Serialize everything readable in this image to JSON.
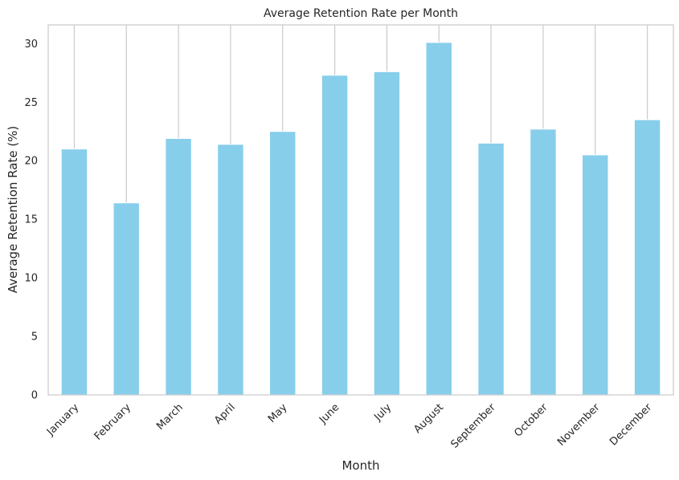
{
  "chart_data": {
    "type": "bar",
    "title": "Average Retention Rate per Month",
    "xlabel": "Month",
    "ylabel": "Average Retention Rate (%)",
    "categories": [
      "January",
      "February",
      "March",
      "April",
      "May",
      "June",
      "July",
      "August",
      "September",
      "October",
      "November",
      "December"
    ],
    "values": [
      21.0,
      16.4,
      21.9,
      21.4,
      22.5,
      27.3,
      27.6,
      30.1,
      21.5,
      22.7,
      20.5,
      23.5
    ],
    "ylim": [
      0,
      31.6
    ],
    "yticks": [
      0,
      5,
      10,
      15,
      20,
      25,
      30
    ],
    "grid": "vertical",
    "bar_color": "#87ceeb",
    "grid_color": "#cccccc",
    "spine_color": "#cccccc"
  }
}
